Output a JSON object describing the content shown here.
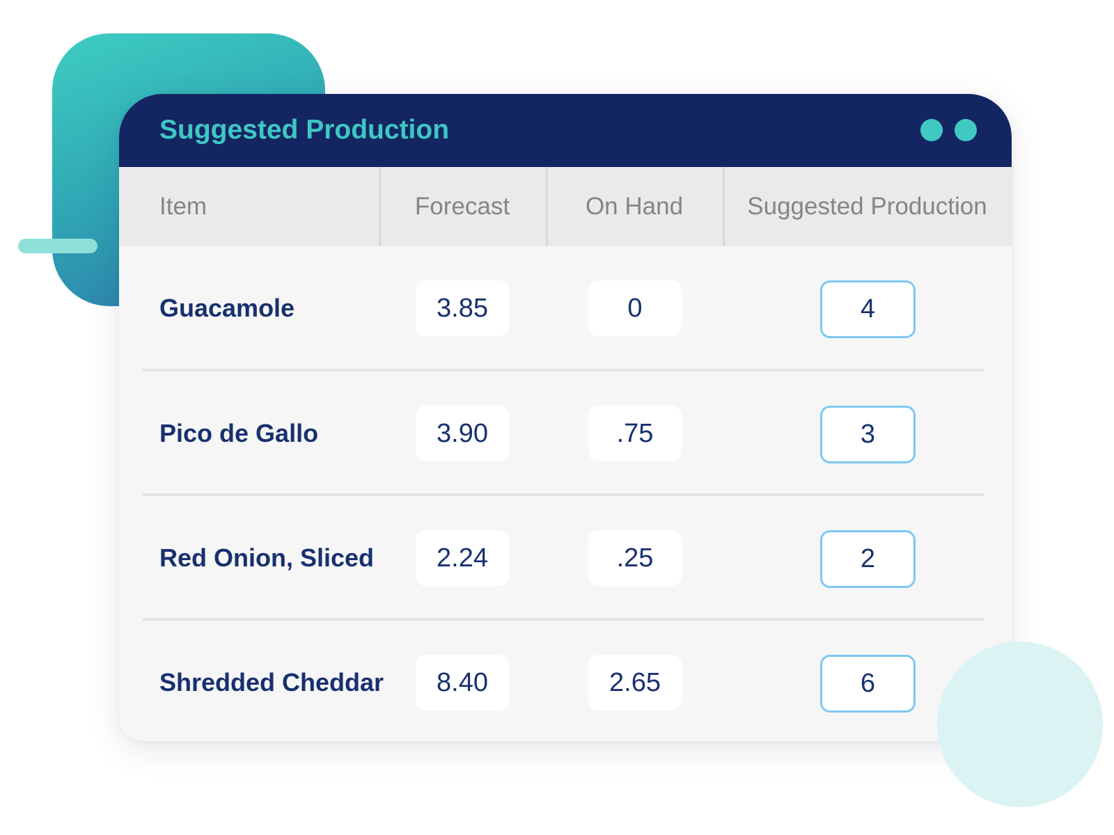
{
  "panel": {
    "title": "Suggested Production"
  },
  "columns": {
    "item": "Item",
    "forecast": "Forecast",
    "on_hand": "On Hand",
    "suggested": "Suggested Production"
  },
  "rows": [
    {
      "item": "Guacamole",
      "forecast": "3.85",
      "on_hand": "0",
      "suggested": "4"
    },
    {
      "item": "Pico de Gallo",
      "forecast": "3.90",
      "on_hand": ".75",
      "suggested": "3"
    },
    {
      "item": "Red Onion, Sliced",
      "forecast": "2.24",
      "on_hand": ".25",
      "suggested": "2"
    },
    {
      "item": "Shredded Cheddar",
      "forecast": "8.40",
      "on_hand": "2.65",
      "suggested": "6"
    }
  ],
  "colors": {
    "header_bg": "#132662",
    "accent_teal": "#3fc7c2",
    "text_navy": "#18306f",
    "input_border": "#7ec8f1"
  }
}
